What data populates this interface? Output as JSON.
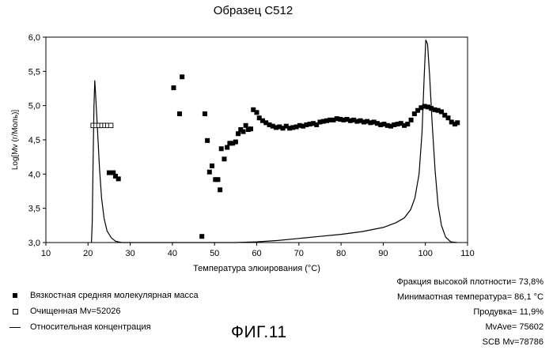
{
  "chart_data": {
    "type": "scatter",
    "title": "Образец C512",
    "xlabel": "Температура элюирования (°C)",
    "ylabel": "Log[Mv (г/Моль)]",
    "xlim": [
      10,
      110
    ],
    "ylim": [
      3.0,
      6.0
    ],
    "x_ticks": [
      "10",
      "20",
      "30",
      "40",
      "50",
      "60",
      "70",
      "80",
      "90",
      "100",
      "110"
    ],
    "y_ticks": [
      "3,0",
      "3,5",
      "4,0",
      "4,5",
      "5,0",
      "5,5",
      "6,0"
    ],
    "legend_placement": "bottom-left",
    "series": [
      {
        "name": "Вязкостная средняя молекулярная масса",
        "marker": "filled-square",
        "points": [
          [
            25.0,
            4.02
          ],
          [
            26.0,
            4.02
          ],
          [
            26.5,
            3.97
          ],
          [
            27.2,
            3.93
          ],
          [
            40.3,
            5.26
          ],
          [
            41.7,
            4.88
          ],
          [
            42.3,
            5.42
          ],
          [
            47.0,
            3.09
          ],
          [
            47.7,
            4.88
          ],
          [
            48.3,
            4.49
          ],
          [
            48.8,
            4.03
          ],
          [
            49.4,
            4.12
          ],
          [
            50.2,
            3.92
          ],
          [
            50.8,
            3.92
          ],
          [
            51.3,
            3.77
          ],
          [
            51.6,
            4.37
          ],
          [
            52.3,
            4.22
          ],
          [
            53.0,
            4.39
          ],
          [
            53.6,
            4.45
          ],
          [
            54.3,
            4.45
          ],
          [
            55.0,
            4.47
          ],
          [
            55.6,
            4.59
          ],
          [
            56.2,
            4.65
          ],
          [
            56.8,
            4.62
          ],
          [
            57.4,
            4.71
          ],
          [
            58.0,
            4.65
          ],
          [
            58.6,
            4.66
          ],
          [
            59.2,
            4.94
          ],
          [
            60.0,
            4.9
          ],
          [
            60.6,
            4.82
          ],
          [
            61.4,
            4.78
          ],
          [
            62.2,
            4.75
          ],
          [
            63.0,
            4.72
          ],
          [
            63.8,
            4.7
          ],
          [
            64.6,
            4.68
          ],
          [
            65.4,
            4.69
          ],
          [
            66.2,
            4.67
          ],
          [
            67.0,
            4.7
          ],
          [
            67.8,
            4.67
          ],
          [
            68.6,
            4.68
          ],
          [
            69.4,
            4.69
          ],
          [
            70.2,
            4.71
          ],
          [
            71.0,
            4.7
          ],
          [
            71.8,
            4.72
          ],
          [
            72.6,
            4.73
          ],
          [
            73.4,
            4.74
          ],
          [
            74.2,
            4.72
          ],
          [
            75.0,
            4.76
          ],
          [
            75.8,
            4.77
          ],
          [
            76.6,
            4.78
          ],
          [
            77.4,
            4.79
          ],
          [
            78.2,
            4.79
          ],
          [
            79.0,
            4.81
          ],
          [
            79.8,
            4.8
          ],
          [
            80.6,
            4.79
          ],
          [
            81.4,
            4.8
          ],
          [
            82.2,
            4.78
          ],
          [
            83.0,
            4.79
          ],
          [
            83.8,
            4.77
          ],
          [
            84.6,
            4.78
          ],
          [
            85.4,
            4.76
          ],
          [
            86.2,
            4.77
          ],
          [
            87.0,
            4.75
          ],
          [
            87.8,
            4.76
          ],
          [
            88.6,
            4.74
          ],
          [
            89.4,
            4.72
          ],
          [
            90.2,
            4.73
          ],
          [
            91.0,
            4.71
          ],
          [
            91.8,
            4.7
          ],
          [
            92.6,
            4.72
          ],
          [
            93.4,
            4.73
          ],
          [
            94.2,
            4.74
          ],
          [
            95.0,
            4.71
          ],
          [
            95.8,
            4.73
          ],
          [
            96.6,
            4.79
          ],
          [
            97.4,
            4.88
          ],
          [
            98.2,
            4.93
          ],
          [
            99.0,
            4.97
          ],
          [
            99.8,
            4.99
          ],
          [
            100.6,
            4.98
          ],
          [
            101.4,
            4.96
          ],
          [
            102.2,
            4.94
          ],
          [
            103.0,
            4.93
          ],
          [
            103.8,
            4.91
          ],
          [
            104.6,
            4.86
          ],
          [
            105.4,
            4.82
          ],
          [
            106.2,
            4.76
          ],
          [
            107.0,
            4.73
          ],
          [
            107.6,
            4.75
          ]
        ]
      },
      {
        "name": "Очищенная Mv=52026",
        "marker": "open-square",
        "points": [
          [
            21.2,
            4.71
          ],
          [
            21.9,
            4.71
          ],
          [
            22.6,
            4.71
          ],
          [
            23.3,
            4.71
          ],
          [
            24.0,
            4.71
          ],
          [
            24.7,
            4.71
          ],
          [
            25.4,
            4.71
          ]
        ]
      },
      {
        "name": "Относительная концентрация",
        "marker": "line",
        "points": [
          [
            20.8,
            3.0
          ],
          [
            21.0,
            3.3
          ],
          [
            21.2,
            4.2
          ],
          [
            21.4,
            5.0
          ],
          [
            21.6,
            5.37
          ],
          [
            21.8,
            5.15
          ],
          [
            22.2,
            4.7
          ],
          [
            22.7,
            4.1
          ],
          [
            23.2,
            3.65
          ],
          [
            23.8,
            3.35
          ],
          [
            24.5,
            3.17
          ],
          [
            25.5,
            3.07
          ],
          [
            26.5,
            3.02
          ],
          [
            28.0,
            3.0
          ],
          [
            45.0,
            3.0
          ],
          [
            50.0,
            3.0
          ],
          [
            55.0,
            3.0
          ],
          [
            60.0,
            3.01
          ],
          [
            65.0,
            3.03
          ],
          [
            70.0,
            3.06
          ],
          [
            75.0,
            3.09
          ],
          [
            80.0,
            3.12
          ],
          [
            85.0,
            3.16
          ],
          [
            90.0,
            3.22
          ],
          [
            93.0,
            3.29
          ],
          [
            95.0,
            3.36
          ],
          [
            96.5,
            3.48
          ],
          [
            97.5,
            3.65
          ],
          [
            98.5,
            4.0
          ],
          [
            99.2,
            4.6
          ],
          [
            99.7,
            5.4
          ],
          [
            100.1,
            5.96
          ],
          [
            100.5,
            5.9
          ],
          [
            101.0,
            5.45
          ],
          [
            101.6,
            4.75
          ],
          [
            102.3,
            4.05
          ],
          [
            103.0,
            3.55
          ],
          [
            103.8,
            3.25
          ],
          [
            104.8,
            3.08
          ],
          [
            106.0,
            3.01
          ],
          [
            107.5,
            3.0
          ]
        ]
      }
    ]
  },
  "stats": [
    "Фракция высокой плотности= 73,8%",
    "Минимаотная температура= 86,1 °C",
    "Продувка= 11,9%",
    "MvAve= 75602",
    "SCB Mv=78786"
  ],
  "figure_label": "ФИГ.11"
}
